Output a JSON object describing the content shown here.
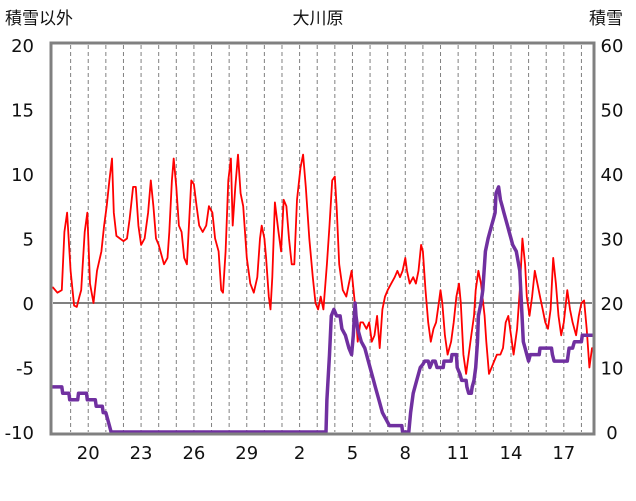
{
  "chart_data": {
    "type": "line",
    "title": "大川原",
    "left_axis_label": "積雪以外",
    "right_axis_label": "積雪",
    "y_left": {
      "min": -10,
      "max": 20,
      "ticks": [
        "-10",
        "-5",
        "0",
        "5",
        "10",
        "15",
        "20"
      ]
    },
    "y_right": {
      "min": 0,
      "max": 60,
      "ticks": [
        "0",
        "10",
        "20",
        "30",
        "40",
        "50",
        "60"
      ]
    },
    "x_ticks": [
      "20",
      "23",
      "26",
      "29",
      "2",
      "5",
      "8",
      "11",
      "14",
      "17"
    ],
    "x_tick_positions": [
      2,
      5,
      8,
      11,
      14,
      17,
      20,
      23,
      26,
      29
    ],
    "x_range": [
      0,
      30.6
    ],
    "grid": "vertical-dashed",
    "colors": {
      "temperature": "#ff0000",
      "snow": "#7030a0",
      "zero_line": "#808080",
      "frame": "#808080",
      "grid": "#808080"
    },
    "series": [
      {
        "name": "",
        "axis": "left",
        "color": "#ff0000",
        "points": [
          [
            0.0,
            1.2
          ],
          [
            0.25,
            0.8
          ],
          [
            0.5,
            1.0
          ],
          [
            0.65,
            5.5
          ],
          [
            0.8,
            7.0
          ],
          [
            1.0,
            2.5
          ],
          [
            1.2,
            -0.2
          ],
          [
            1.35,
            -0.3
          ],
          [
            1.5,
            0.5
          ],
          [
            1.6,
            1.0
          ],
          [
            1.8,
            5.5
          ],
          [
            1.95,
            7.0
          ],
          [
            2.1,
            1.5
          ],
          [
            2.3,
            0.0
          ],
          [
            2.5,
            2.5
          ],
          [
            2.75,
            4.0
          ],
          [
            2.9,
            6.0
          ],
          [
            3.05,
            7.5
          ],
          [
            3.2,
            9.5
          ],
          [
            3.35,
            11.2
          ],
          [
            3.45,
            7.0
          ],
          [
            3.6,
            5.2
          ],
          [
            3.8,
            5.0
          ],
          [
            4.0,
            4.8
          ],
          [
            4.2,
            5.0
          ],
          [
            4.35,
            6.5
          ],
          [
            4.55,
            9.0
          ],
          [
            4.7,
            9.0
          ],
          [
            4.85,
            6.0
          ],
          [
            5.0,
            4.5
          ],
          [
            5.2,
            5.0
          ],
          [
            5.4,
            7.0
          ],
          [
            5.55,
            9.5
          ],
          [
            5.7,
            7.5
          ],
          [
            5.85,
            5.0
          ],
          [
            6.0,
            4.5
          ],
          [
            6.3,
            3.0
          ],
          [
            6.5,
            3.5
          ],
          [
            6.6,
            5.5
          ],
          [
            6.75,
            9.5
          ],
          [
            6.85,
            11.2
          ],
          [
            7.0,
            9.0
          ],
          [
            7.15,
            6.0
          ],
          [
            7.3,
            5.5
          ],
          [
            7.45,
            3.5
          ],
          [
            7.6,
            3.0
          ],
          [
            7.7,
            5.5
          ],
          [
            7.85,
            9.5
          ],
          [
            8.0,
            9.2
          ],
          [
            8.15,
            7.5
          ],
          [
            8.3,
            6.0
          ],
          [
            8.5,
            5.5
          ],
          [
            8.7,
            6.0
          ],
          [
            8.85,
            7.5
          ],
          [
            9.05,
            7.0
          ],
          [
            9.2,
            5.0
          ],
          [
            9.4,
            4.0
          ],
          [
            9.55,
            1.0
          ],
          [
            9.65,
            0.8
          ],
          [
            9.8,
            4.0
          ],
          [
            9.95,
            9.5
          ],
          [
            10.1,
            11.2
          ],
          [
            10.2,
            6.0
          ],
          [
            10.35,
            9.0
          ],
          [
            10.5,
            11.5
          ],
          [
            10.65,
            8.5
          ],
          [
            10.8,
            7.5
          ],
          [
            11.0,
            3.5
          ],
          [
            11.2,
            1.5
          ],
          [
            11.4,
            0.8
          ],
          [
            11.6,
            2.0
          ],
          [
            11.75,
            5.0
          ],
          [
            11.85,
            6.0
          ],
          [
            12.0,
            5.0
          ],
          [
            12.1,
            3.5
          ],
          [
            12.25,
            0.5
          ],
          [
            12.35,
            -0.5
          ],
          [
            12.45,
            2.0
          ],
          [
            12.6,
            7.8
          ],
          [
            12.8,
            5.5
          ],
          [
            12.95,
            4.0
          ],
          [
            13.1,
            8.0
          ],
          [
            13.25,
            7.5
          ],
          [
            13.4,
            5.0
          ],
          [
            13.55,
            3.0
          ],
          [
            13.7,
            3.0
          ],
          [
            13.85,
            8.0
          ],
          [
            14.05,
            10.5
          ],
          [
            14.2,
            11.5
          ],
          [
            14.35,
            9.0
          ],
          [
            14.55,
            5.0
          ],
          [
            14.75,
            2.0
          ],
          [
            14.9,
            0.0
          ],
          [
            15.05,
            -0.5
          ],
          [
            15.2,
            0.5
          ],
          [
            15.35,
            -0.5
          ],
          [
            15.55,
            3.0
          ],
          [
            15.7,
            6.0
          ],
          [
            15.85,
            9.5
          ],
          [
            16.0,
            9.8
          ],
          [
            16.1,
            7.5
          ],
          [
            16.25,
            3.0
          ],
          [
            16.45,
            1.0
          ],
          [
            16.65,
            0.5
          ],
          [
            16.8,
            1.5
          ],
          [
            16.95,
            2.5
          ],
          [
            17.1,
            0.5
          ],
          [
            17.2,
            -1.0
          ],
          [
            17.3,
            -3.0
          ],
          [
            17.45,
            -1.5
          ],
          [
            17.6,
            -1.5
          ],
          [
            17.8,
            -2.0
          ],
          [
            17.95,
            -1.5
          ],
          [
            18.1,
            -3.0
          ],
          [
            18.25,
            -2.5
          ],
          [
            18.4,
            -1.0
          ],
          [
            18.55,
            -3.5
          ],
          [
            18.7,
            -0.5
          ],
          [
            18.85,
            0.5
          ],
          [
            19.0,
            1.0
          ],
          [
            19.2,
            1.5
          ],
          [
            19.4,
            2.0
          ],
          [
            19.55,
            2.5
          ],
          [
            19.7,
            2.0
          ],
          [
            19.85,
            2.5
          ],
          [
            20.0,
            3.5
          ],
          [
            20.1,
            2.5
          ],
          [
            20.25,
            1.5
          ],
          [
            20.45,
            2.0
          ],
          [
            20.6,
            1.5
          ],
          [
            20.75,
            2.5
          ],
          [
            20.9,
            4.5
          ],
          [
            21.0,
            4.0
          ],
          [
            21.15,
            1.0
          ],
          [
            21.3,
            -1.5
          ],
          [
            21.45,
            -3.0
          ],
          [
            21.6,
            -2.0
          ],
          [
            21.75,
            -1.5
          ],
          [
            21.9,
            0.0
          ],
          [
            22.0,
            1.0
          ],
          [
            22.1,
            0.0
          ],
          [
            22.25,
            -2.5
          ],
          [
            22.4,
            -4.0
          ],
          [
            22.6,
            -3.0
          ],
          [
            22.75,
            -1.5
          ],
          [
            22.9,
            0.5
          ],
          [
            23.05,
            1.5
          ],
          [
            23.15,
            0.0
          ],
          [
            23.3,
            -4.0
          ],
          [
            23.45,
            -5.5
          ],
          [
            23.6,
            -4.0
          ],
          [
            23.75,
            -2.5
          ],
          [
            23.9,
            -1.0
          ],
          [
            24.0,
            1.0
          ],
          [
            24.15,
            2.5
          ],
          [
            24.3,
            1.5
          ],
          [
            24.5,
            -1.0
          ],
          [
            24.6,
            -3.0
          ],
          [
            24.75,
            -5.5
          ],
          [
            24.9,
            -5.0
          ],
          [
            25.05,
            -4.5
          ],
          [
            25.2,
            -4.0
          ],
          [
            25.4,
            -4.0
          ],
          [
            25.55,
            -3.5
          ],
          [
            25.7,
            -1.5
          ],
          [
            25.85,
            -1.0
          ],
          [
            26.0,
            -2.5
          ],
          [
            26.15,
            -4.0
          ],
          [
            26.35,
            -2.0
          ],
          [
            26.5,
            1.0
          ],
          [
            26.65,
            5.0
          ],
          [
            26.8,
            3.0
          ],
          [
            26.9,
            0.5
          ],
          [
            27.05,
            -1.0
          ],
          [
            27.2,
            0.5
          ],
          [
            27.35,
            2.5
          ],
          [
            27.5,
            1.5
          ],
          [
            27.65,
            0.5
          ],
          [
            27.8,
            -0.5
          ],
          [
            27.95,
            -1.5
          ],
          [
            28.1,
            -2.0
          ],
          [
            28.25,
            -0.5
          ],
          [
            28.4,
            3.5
          ],
          [
            28.55,
            1.5
          ],
          [
            28.7,
            -1.0
          ],
          [
            28.85,
            -2.5
          ],
          [
            29.0,
            -1.5
          ],
          [
            29.2,
            1.0
          ],
          [
            29.35,
            -0.5
          ],
          [
            29.5,
            -1.5
          ],
          [
            29.7,
            -2.5
          ],
          [
            29.85,
            -1.0
          ],
          [
            30.0,
            0.0
          ],
          [
            30.15,
            0.2
          ],
          [
            30.3,
            -2.0
          ],
          [
            30.45,
            -5.0
          ],
          [
            30.6,
            -3.5
          ]
        ]
      },
      {
        "name": "",
        "axis": "right",
        "color": "#7030a0",
        "points": [
          [
            0.0,
            7
          ],
          [
            0.5,
            7
          ],
          [
            0.55,
            6
          ],
          [
            0.9,
            6
          ],
          [
            0.95,
            5
          ],
          [
            1.4,
            5
          ],
          [
            1.45,
            6
          ],
          [
            1.9,
            6
          ],
          [
            1.95,
            5
          ],
          [
            2.4,
            5
          ],
          [
            2.45,
            4
          ],
          [
            2.8,
            4
          ],
          [
            2.85,
            3
          ],
          [
            3.0,
            3
          ],
          [
            3.15,
            1.5
          ],
          [
            3.3,
            0
          ],
          [
            15.0,
            0
          ],
          [
            15.5,
            0
          ],
          [
            15.55,
            5
          ],
          [
            15.7,
            12
          ],
          [
            15.8,
            18
          ],
          [
            15.95,
            19
          ],
          [
            16.1,
            18
          ],
          [
            16.3,
            18
          ],
          [
            16.4,
            16
          ],
          [
            16.6,
            15
          ],
          [
            16.8,
            13
          ],
          [
            16.95,
            12
          ],
          [
            17.05,
            15
          ],
          [
            17.15,
            20
          ],
          [
            17.2,
            18
          ],
          [
            17.3,
            16
          ],
          [
            17.5,
            14
          ],
          [
            17.7,
            13
          ],
          [
            17.9,
            11
          ],
          [
            18.1,
            9
          ],
          [
            18.3,
            7
          ],
          [
            18.5,
            5
          ],
          [
            18.7,
            3
          ],
          [
            18.9,
            2
          ],
          [
            19.1,
            1
          ],
          [
            19.3,
            1
          ],
          [
            19.5,
            1
          ],
          [
            19.8,
            1
          ],
          [
            19.85,
            0
          ],
          [
            20.2,
            0
          ],
          [
            20.3,
            3
          ],
          [
            20.45,
            6
          ],
          [
            20.65,
            8
          ],
          [
            20.85,
            10
          ],
          [
            21.0,
            10.5
          ],
          [
            21.1,
            11
          ],
          [
            21.3,
            11
          ],
          [
            21.4,
            10
          ],
          [
            21.55,
            11
          ],
          [
            21.7,
            11
          ],
          [
            21.8,
            10
          ],
          [
            22.15,
            10
          ],
          [
            22.2,
            11
          ],
          [
            22.6,
            11
          ],
          [
            22.65,
            12
          ],
          [
            22.9,
            12
          ],
          [
            22.95,
            10
          ],
          [
            23.1,
            9
          ],
          [
            23.2,
            8
          ],
          [
            23.45,
            8
          ],
          [
            23.5,
            7
          ],
          [
            23.6,
            6
          ],
          [
            23.75,
            6
          ],
          [
            23.8,
            7
          ],
          [
            23.9,
            8
          ],
          [
            24.0,
            10
          ],
          [
            24.1,
            14
          ],
          [
            24.15,
            18
          ],
          [
            24.3,
            20
          ],
          [
            24.4,
            22
          ],
          [
            24.55,
            28
          ],
          [
            24.7,
            30
          ],
          [
            24.9,
            32
          ],
          [
            25.0,
            33
          ],
          [
            25.1,
            34
          ],
          [
            25.15,
            37
          ],
          [
            25.3,
            38
          ],
          [
            25.4,
            36
          ],
          [
            25.5,
            35
          ],
          [
            25.6,
            34
          ],
          [
            25.8,
            32
          ],
          [
            25.9,
            31
          ],
          [
            26.0,
            30
          ],
          [
            26.1,
            29
          ],
          [
            26.3,
            28
          ],
          [
            26.5,
            25
          ],
          [
            26.7,
            14
          ],
          [
            26.8,
            13
          ],
          [
            26.9,
            12
          ],
          [
            27.0,
            11
          ],
          [
            27.1,
            12
          ],
          [
            27.6,
            12
          ],
          [
            27.65,
            13
          ],
          [
            28.3,
            13
          ],
          [
            28.35,
            12
          ],
          [
            28.45,
            11
          ],
          [
            29.2,
            11
          ],
          [
            29.25,
            12
          ],
          [
            29.3,
            13
          ],
          [
            29.5,
            13
          ],
          [
            29.6,
            14
          ],
          [
            30.0,
            14
          ],
          [
            30.05,
            15
          ],
          [
            30.6,
            15
          ]
        ]
      }
    ]
  }
}
